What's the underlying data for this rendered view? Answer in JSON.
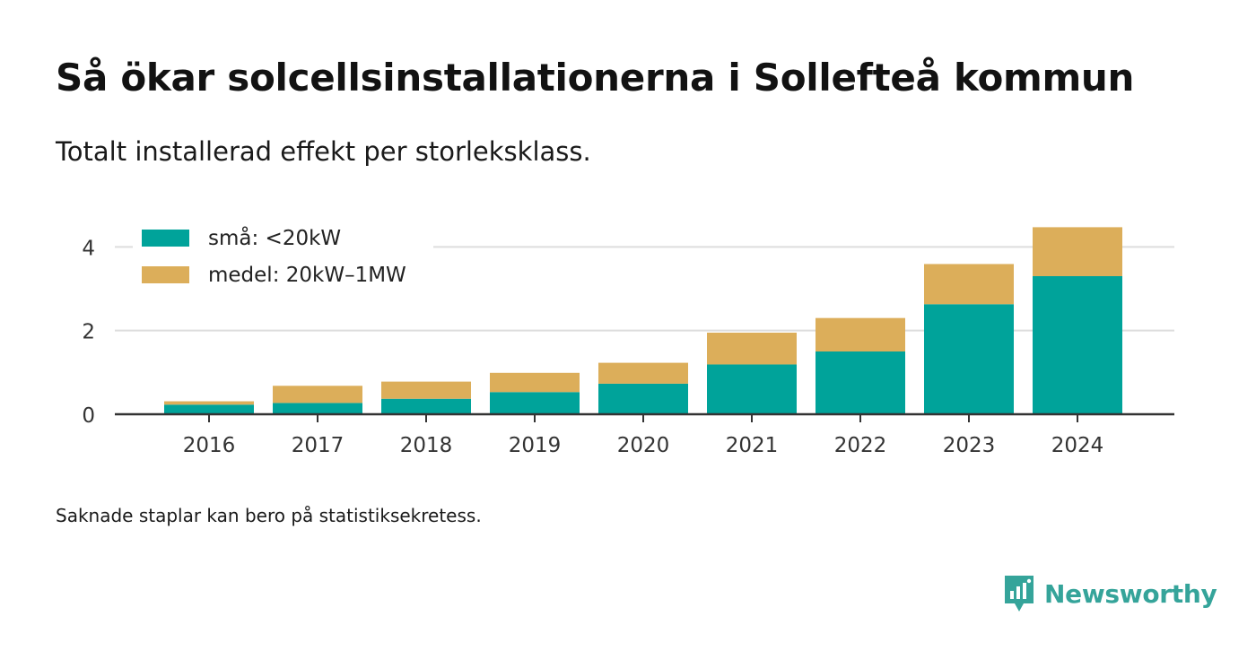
{
  "title": "Så ökar solcellsinstallationerna i Sollefteå kommun",
  "subtitle": "Totalt installerad effekt per storleksklass.",
  "footnote": "Saknade staplar kan bero på statistiksekretess.",
  "brand": {
    "name": "Newsworthy",
    "icon": "newsworthy-logo-icon",
    "color": "#35a49a"
  },
  "chart_data": {
    "type": "bar",
    "stacked": true,
    "categories": [
      "2016",
      "2017",
      "2018",
      "2019",
      "2020",
      "2021",
      "2022",
      "2023",
      "2024"
    ],
    "series": [
      {
        "name": "små: <20kW",
        "color": "#00a39a",
        "values": [
          0.23,
          0.27,
          0.37,
          0.53,
          0.73,
          1.19,
          1.5,
          2.63,
          3.3
        ]
      },
      {
        "name": "medel: 20kW–1MW",
        "color": "#dcae5a",
        "values": [
          0.08,
          0.41,
          0.41,
          0.46,
          0.5,
          0.76,
          0.8,
          0.96,
          1.17
        ]
      }
    ],
    "ylim": [
      0,
      4.5
    ],
    "yticks": [
      0,
      2,
      4
    ],
    "ytick_labels": [
      "0",
      "2",
      "4"
    ],
    "xlabel": "",
    "ylabel": "",
    "grid": true,
    "legend_position": "top-left"
  }
}
